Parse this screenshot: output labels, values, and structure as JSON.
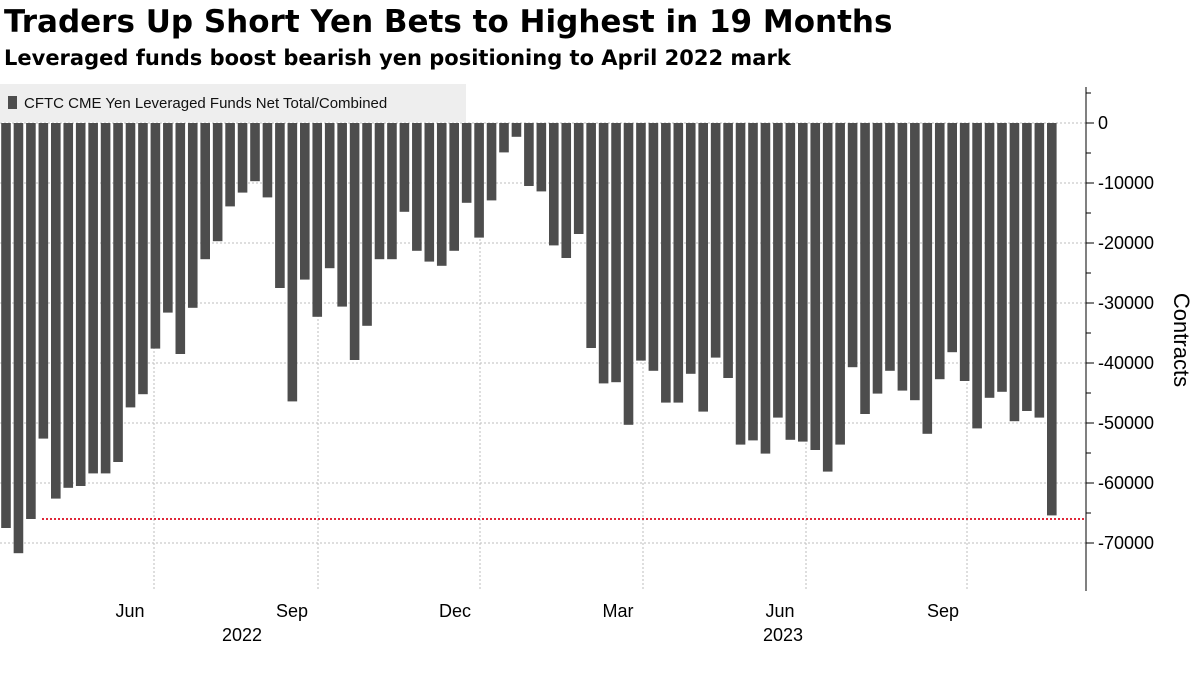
{
  "header": {
    "title": "Traders Up Short Yen Bets to Highest in 19 Months",
    "subtitle": "Leveraged funds boost bearish yen positioning to April 2022 mark"
  },
  "chart_data": {
    "type": "bar",
    "series": [
      {
        "name": "CFTC CME Yen Leveraged Funds Net Total/Combined",
        "color": "#4d4d4d",
        "values": [
          -67500,
          -71700,
          -66000,
          -52600,
          -62600,
          -60800,
          -60500,
          -58400,
          -58400,
          -56500,
          -47400,
          -45200,
          -37600,
          -31600,
          -38500,
          -30800,
          -22700,
          -19700,
          -13900,
          -11600,
          -9700,
          -12400,
          -27500,
          -46400,
          -26100,
          -32300,
          -24200,
          -30600,
          -39500,
          -33800,
          -22700,
          -22700,
          -14800,
          -21300,
          -23100,
          -23800,
          -21300,
          -13300,
          -19100,
          -12900,
          -4900,
          -2300,
          -10500,
          -11400,
          -20400,
          -22500,
          -18500,
          -37500,
          -43400,
          -43200,
          -50300,
          -39600,
          -41300,
          -46600,
          -46600,
          -41800,
          -48100,
          -39100,
          -42500,
          -53600,
          -52900,
          -55100,
          -49100,
          -52800,
          -53100,
          -54500,
          -58100,
          -53600,
          -40700,
          -48500,
          -45100,
          -41300,
          -44600,
          -46200,
          -51800,
          -42700,
          -38200,
          -43000,
          -50900,
          -45800,
          -44800,
          -49700,
          -48000,
          -49100,
          -65400
        ]
      }
    ],
    "x_tick_labels": [
      "Jun",
      "Sep",
      "Dec",
      "Mar",
      "Jun",
      "Sep"
    ],
    "year_labels": [
      "2022",
      "2023"
    ],
    "y_ticks": [
      0,
      -10000,
      -20000,
      -30000,
      -40000,
      -50000,
      -60000,
      -70000
    ],
    "ylim": [
      -78000,
      6000
    ],
    "ylabel": "Contracts",
    "reference_line": {
      "value": -66000,
      "color": "#e0283a",
      "style": "dotted"
    },
    "grid": true,
    "legend_position": "top-left",
    "axis_position": "right"
  }
}
